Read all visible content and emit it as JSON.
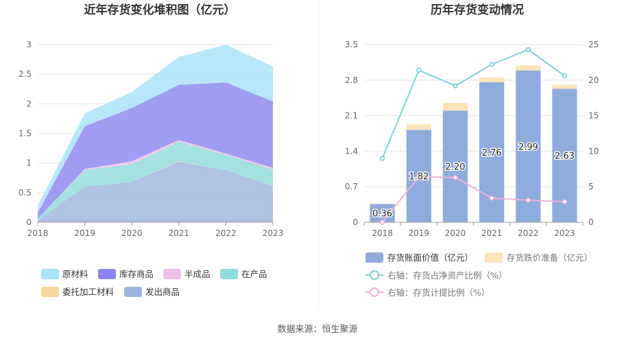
{
  "footer": {
    "source_label": "数据来源：恒生聚源"
  },
  "chart_data": [
    {
      "type": "area",
      "stacked": true,
      "title": "近年存货变化堆积图（亿元）",
      "x": [
        "2018",
        "2019",
        "2020",
        "2021",
        "2022",
        "2023"
      ],
      "ylim": [
        0,
        3
      ],
      "yticks": [
        "0",
        "0.5",
        "1",
        "1.5",
        "2",
        "2.5",
        "3"
      ],
      "grid": true,
      "legend_position": "bottom",
      "series": [
        {
          "name": "发出商品",
          "color": "#9db4dc",
          "values": [
            0.03,
            0.6,
            0.68,
            1.02,
            0.88,
            0.61
          ]
        },
        {
          "name": "委托加工材料",
          "color": "#f8d79a",
          "values": [
            0.0,
            0.0,
            0.0,
            0.01,
            0.0,
            0.0
          ]
        },
        {
          "name": "在产品",
          "color": "#8fdcd8",
          "values": [
            0.03,
            0.28,
            0.3,
            0.33,
            0.26,
            0.28
          ]
        },
        {
          "name": "半成品",
          "color": "#eebee6",
          "values": [
            0.0,
            0.02,
            0.05,
            0.03,
            0.02,
            0.03
          ]
        },
        {
          "name": "库存商品",
          "color": "#8a86ef",
          "values": [
            0.1,
            0.72,
            0.9,
            0.93,
            1.2,
            1.12
          ]
        },
        {
          "name": "原材料",
          "color": "#a8e2fb",
          "values": [
            0.12,
            0.22,
            0.27,
            0.47,
            0.64,
            0.59
          ]
        }
      ],
      "legend": [
        {
          "name": "原材料",
          "color": "#a8e2fb"
        },
        {
          "name": "库存商品",
          "color": "#8a86ef"
        },
        {
          "name": "半成品",
          "color": "#eebee6"
        },
        {
          "name": "在产品",
          "color": "#8fdcd8"
        },
        {
          "name": "委托加工材料",
          "color": "#f8d79a"
        },
        {
          "name": "发出商品",
          "color": "#9db4dc"
        }
      ]
    },
    {
      "type": "bar",
      "title": "历年存货变动情况",
      "categories": [
        "2018",
        "2019",
        "2020",
        "2021",
        "2022",
        "2023"
      ],
      "ylim": [
        0,
        3.5
      ],
      "yticks": [
        "0",
        "0.7",
        "1.4",
        "2.1",
        "2.8",
        "3.5"
      ],
      "y2lim": [
        0,
        25
      ],
      "y2ticks": [
        "0",
        "5",
        "10",
        "15",
        "20",
        "25"
      ],
      "grid": true,
      "legend_position": "bottom",
      "bars": [
        {
          "name": "存货账面价值（亿元）",
          "color": "#8eacdb",
          "values": [
            0.36,
            1.82,
            2.2,
            2.76,
            2.99,
            2.63
          ],
          "labels": [
            "0.36",
            "1.82",
            "2.20",
            "2.76",
            "2.99",
            "2.63"
          ]
        },
        {
          "name": "存货跌价准备（亿元）",
          "color": "#fde3b8",
          "values": [
            0.0,
            0.11,
            0.15,
            0.09,
            0.1,
            0.08
          ]
        }
      ],
      "lines": [
        {
          "name": "右轴：存货占净资产比例（%）",
          "color": "#7ed0da",
          "axis": "right",
          "values": [
            9.0,
            21.4,
            19.2,
            22.2,
            24.3,
            20.6
          ]
        },
        {
          "name": "右轴：存货计提比例（%）",
          "color": "#f2b1dc",
          "axis": "right",
          "values": [
            0.0,
            6.4,
            6.3,
            3.4,
            3.1,
            2.9
          ]
        }
      ]
    }
  ]
}
